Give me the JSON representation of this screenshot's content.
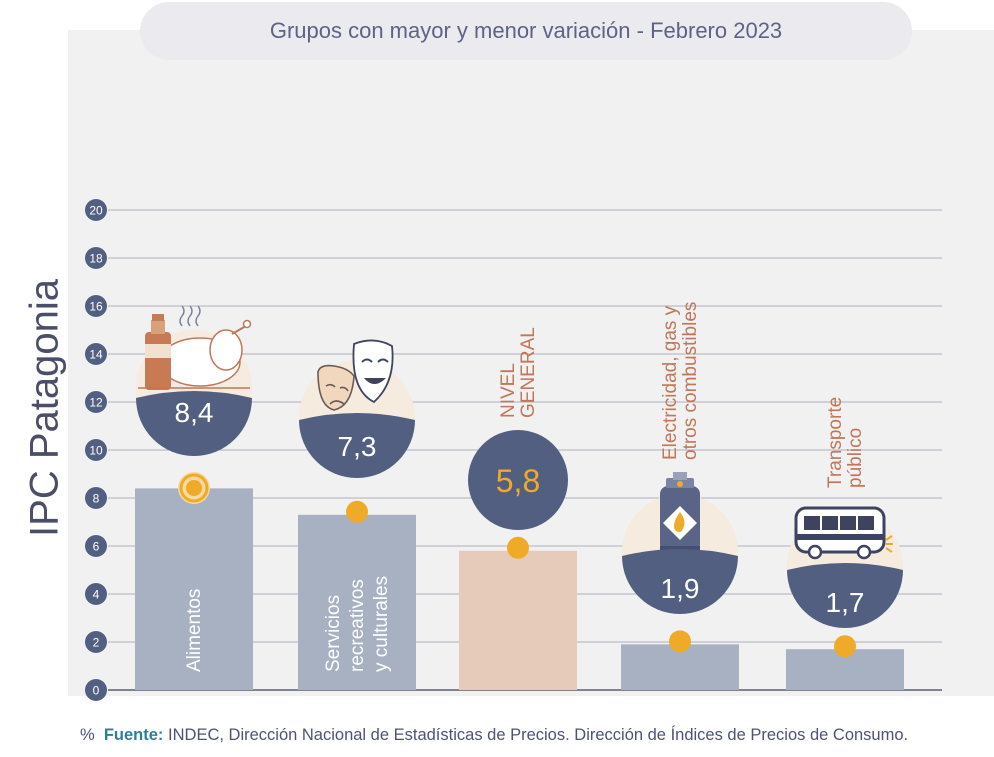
{
  "title": "Grupos con mayor y menor variación - Febrero 2023",
  "side_title": "IPC Patagonia",
  "unit": "%",
  "source": {
    "label": "Fuente:",
    "text": "INDEC, Dirección Nacional de Estadísticas de Precios. Dirección de Índices de Precios de Consumo."
  },
  "colors": {
    "bar_group": "#a7b1c2",
    "bar_general": "#e6cbbb",
    "bubble": "#525f80",
    "dot": "#efab28",
    "general_text": "#f0a928",
    "label_accent": "#c0775a"
  },
  "chart_data": {
    "type": "bar",
    "ylim": [
      0,
      20
    ],
    "yticks": [
      0,
      2,
      4,
      6,
      8,
      10,
      12,
      14,
      16,
      18,
      20
    ],
    "grid": true,
    "categories": [
      "Alimentos",
      "Servicios recreativos y culturales",
      "NIVEL GENERAL",
      "Electricidad, gas y otros combustibles",
      "Transporte público"
    ],
    "values": [
      8.4,
      7.3,
      5.8,
      1.9,
      1.7
    ],
    "value_labels": [
      "8,4",
      "7,3",
      "5,8",
      "1,9",
      "1,7"
    ],
    "inside_labels": [
      [
        "Alimentos"
      ],
      [
        "Servicios",
        "recreativos",
        "y culturales"
      ],
      [],
      [],
      []
    ],
    "outside_labels": [
      [],
      [],
      [
        "NIVEL",
        "GENERAL"
      ],
      [
        "Electricidad, gas y",
        "otros combustibles"
      ],
      [
        "Transporte",
        "público"
      ]
    ],
    "icons": [
      "food-icon",
      "theater-masks-icon",
      "",
      "gas-cylinder-icon",
      "bus-icon"
    ]
  }
}
